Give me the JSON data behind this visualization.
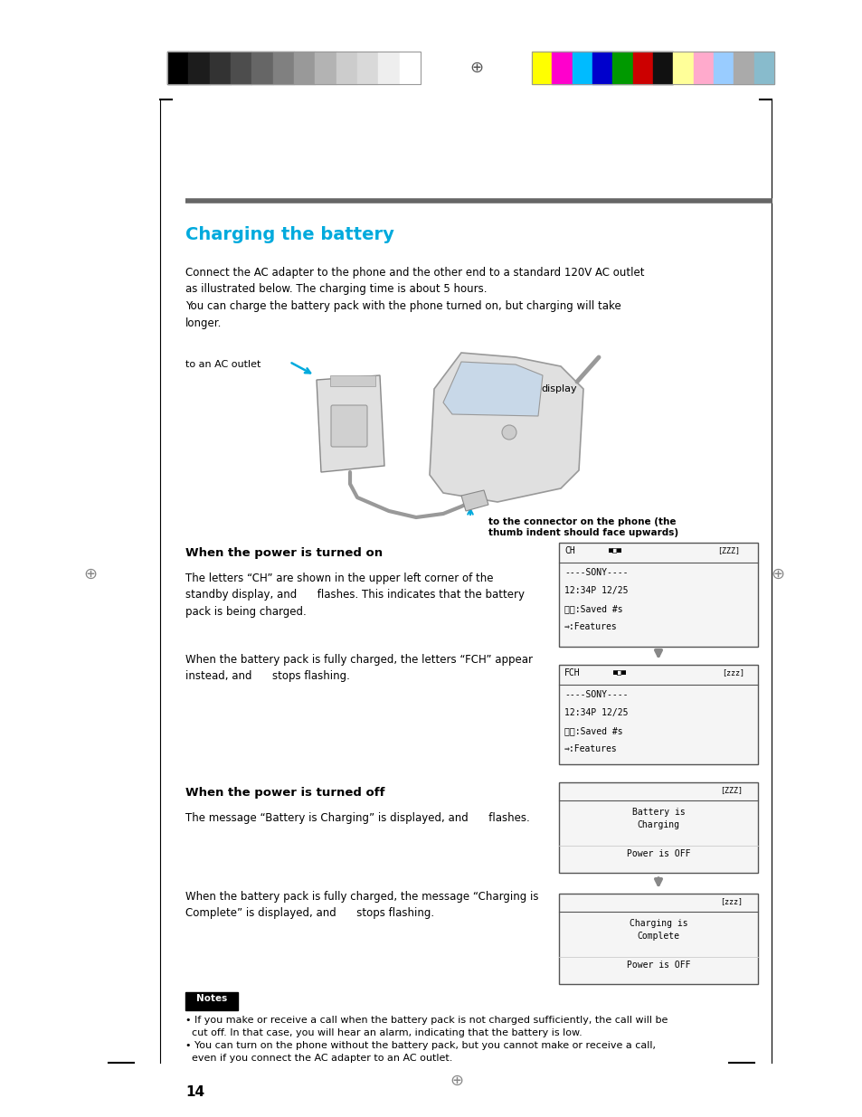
{
  "bg_color": "#ffffff",
  "page_width": 9.54,
  "page_height": 12.35,
  "dpi": 100,
  "title": "Charging the battery",
  "title_color": "#00aadd",
  "body_text_1": "Connect the AC adapter to the phone and the other end to a standard 120V AC outlet\nas illustrated below. The charging time is about 5 hours.\nYou can charge the battery pack with the phone turned on, but charging will take\nlonger.",
  "section1_title": "When the power is turned on",
  "section1_body1": "The letters “CH” are shown in the upper left corner of the\nstandby display, and      flashes. This indicates that the battery\npack is being charged.",
  "section1_body2": "When the battery pack is fully charged, the letters “FCH” appear\ninstead, and      stops flashing.",
  "section2_title": "When the power is turned off",
  "section2_body1": "The message “Battery is Charging” is displayed, and      flashes.",
  "section2_body2": "When the battery pack is fully charged, the message “Charging is\nComplete” is displayed, and      stops flashing.",
  "notes_body": "• If you make or receive a call when the battery pack is not charged sufficiently, the call will be\n  cut off. In that case, you will hear an alarm, indicating that the battery is low.\n• You can turn on the phone without the battery pack, but you cannot make or receive a call,\n  even if you connect the AC adapter to an AC outlet.",
  "page_num": "14",
  "gray_colors": [
    "#000000",
    "#1c1c1c",
    "#333333",
    "#4d4d4d",
    "#666666",
    "#808080",
    "#999999",
    "#b3b3b3",
    "#cccccc",
    "#d9d9d9",
    "#eeeeee",
    "#ffffff"
  ],
  "color_list": [
    "#ffff00",
    "#ff00cc",
    "#00bbff",
    "#0000cc",
    "#009900",
    "#cc0000",
    "#111111",
    "#ffff99",
    "#ffaacc",
    "#99ccff",
    "#aaaaaa",
    "#88bbcc"
  ]
}
